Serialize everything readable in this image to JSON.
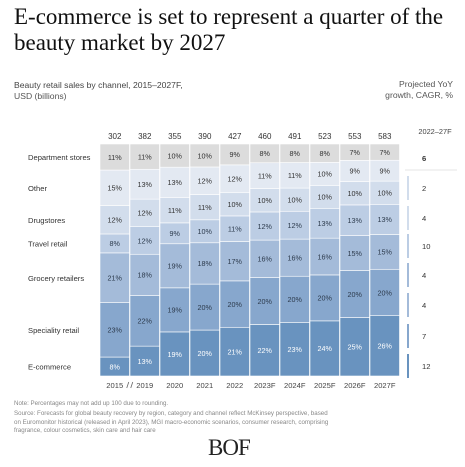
{
  "title": "E-commerce is set to represent a quarter of the beauty market by 2027",
  "subtitle": "Beauty retail sales by channel, 2015–2027F,",
  "unit": "USD (billions)",
  "projected_header": "Projected YoY growth, CAGR, %",
  "cagr_period": "2022–27F",
  "note": "Note: Percentages may not add up 100 due to rounding.",
  "source": "Source: Forecasts for global beauty recovery by region, category and channel reflect McKinsey perspective, based on Euromonitor historical (released in April 2023), MGI macro-economic scenarios, consumer research, comprising fragrance, colour cosmetics, skin care and hair care",
  "logo": "BOF",
  "chart_data": {
    "type": "bar",
    "stacked": "percent",
    "categories": [
      "2015",
      "2019",
      "2020",
      "2021",
      "2022",
      "2023F",
      "2024F",
      "2025F",
      "2026F",
      "2027F"
    ],
    "totals": [
      302,
      382,
      355,
      390,
      427,
      460,
      491,
      523,
      553,
      583
    ],
    "series": [
      {
        "name": "E-commerce",
        "values": [
          8,
          13,
          19,
          20,
          21,
          22,
          23,
          24,
          25,
          26
        ],
        "color": "#6993bf"
      },
      {
        "name": "Speciality retail",
        "values": [
          23,
          22,
          19,
          20,
          20,
          20,
          20,
          20,
          20,
          20
        ],
        "color": "#87a7cd"
      },
      {
        "name": "Grocery retailers",
        "values": [
          21,
          18,
          19,
          18,
          17,
          16,
          16,
          16,
          15,
          15
        ],
        "color": "#a4bbd9"
      },
      {
        "name": "Travel retail",
        "values": [
          8,
          12,
          9,
          10,
          11,
          12,
          12,
          13,
          13,
          13
        ],
        "color": "#bccde4"
      },
      {
        "name": "Drugstores",
        "values": [
          12,
          12,
          11,
          11,
          10,
          10,
          10,
          10,
          10,
          10
        ],
        "color": "#d2ddec"
      },
      {
        "name": "Other",
        "values": [
          15,
          13,
          13,
          12,
          12,
          11,
          11,
          10,
          9,
          9
        ],
        "color": "#e3e9f2"
      },
      {
        "name": "Department stores",
        "values": [
          11,
          11,
          10,
          10,
          9,
          8,
          8,
          8,
          7,
          7
        ],
        "color": "#dcdcdc"
      }
    ],
    "cagr": [
      12,
      7,
      4,
      10,
      4,
      2,
      2,
      6
    ],
    "cagr_order": [
      "E-commerce",
      "Speciality retail",
      "Grocery retailers",
      "Travel retail",
      "Drugstores",
      "Other",
      "Department stores",
      "Total"
    ]
  }
}
